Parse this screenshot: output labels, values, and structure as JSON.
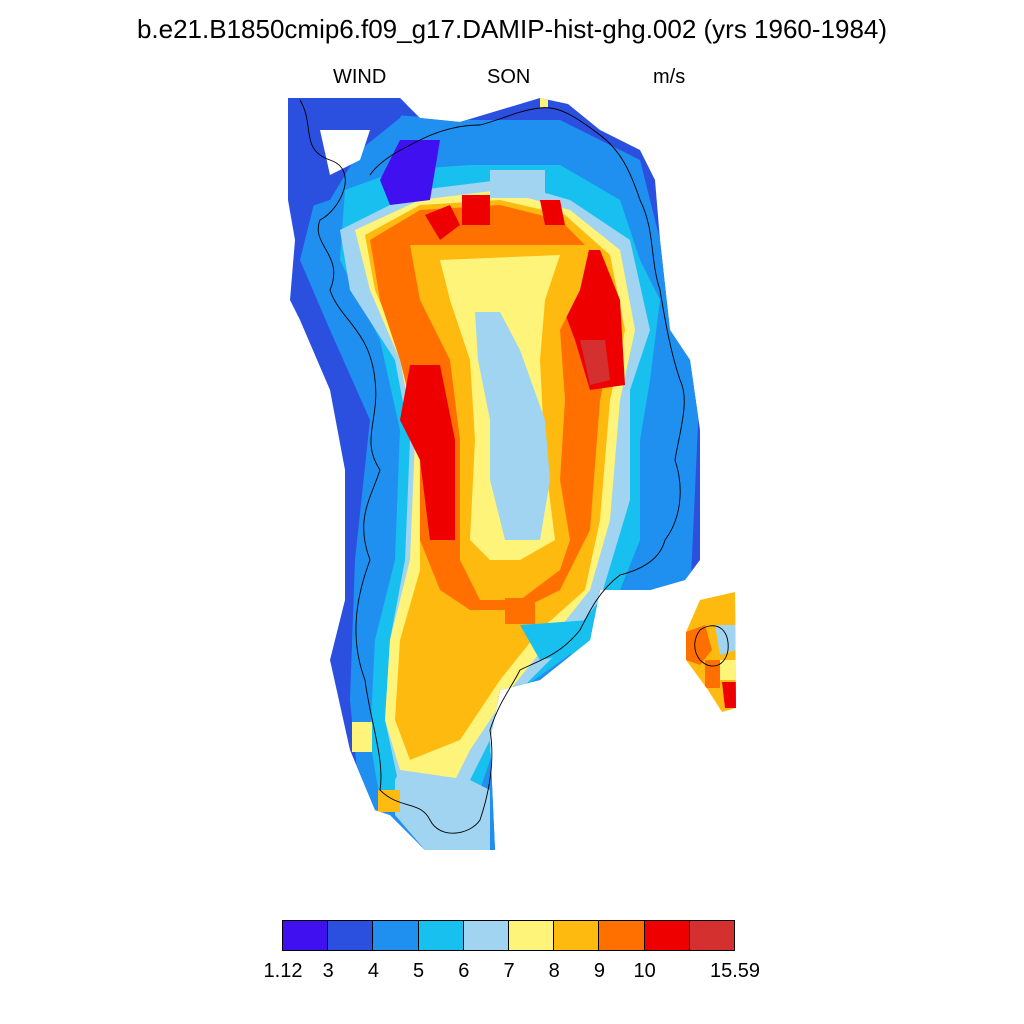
{
  "title": "b.e21.B1850cmip6.f09_g17.DAMIP-hist-ghg.002 (yrs 1960-1984)",
  "subtitles": {
    "variable": "WIND",
    "season": "SON",
    "units": "m/s"
  },
  "colorbar": {
    "colors": [
      "#4010f0",
      "#2b50e0",
      "#2090f0",
      "#18c0f0",
      "#a0d4f0",
      "#fff47a",
      "#ffba10",
      "#ff7000",
      "#ee0000",
      "#d43030"
    ],
    "tick_labels": [
      "1.12",
      "3",
      "4",
      "5",
      "6",
      "7",
      "8",
      "9",
      "10",
      "15.59"
    ]
  }
}
